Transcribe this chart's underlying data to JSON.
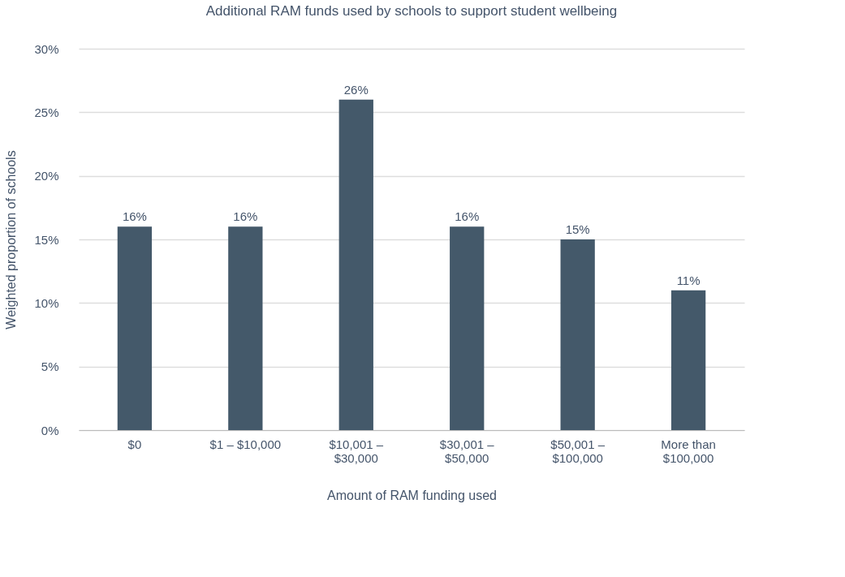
{
  "chart_data": {
    "type": "bar",
    "title": "Additional RAM funds used by schools to support student wellbeing",
    "xlabel": "Amount of RAM funding used",
    "ylabel": "Weighted proportion of schools",
    "categories": [
      "$0",
      "$1 – $10,000",
      "$10,001 –\n$30,000",
      "$30,001 –\n$50,000",
      "$50,001 –\n$100,000",
      "More than\n$100,000"
    ],
    "values": [
      16,
      16,
      26,
      16,
      15,
      11
    ],
    "value_labels": [
      "16%",
      "16%",
      "26%",
      "16%",
      "15%",
      "11%"
    ],
    "color": "#44596a",
    "ylim": [
      0,
      30
    ],
    "yticks": [
      {
        "value": 0,
        "label": "0%"
      },
      {
        "value": 5,
        "label": "5%"
      },
      {
        "value": 10,
        "label": "10%"
      },
      {
        "value": 15,
        "label": "15%"
      },
      {
        "value": 20,
        "label": "20%"
      },
      {
        "value": 25,
        "label": "25%"
      },
      {
        "value": 30,
        "label": "30%"
      }
    ],
    "grid": "y"
  }
}
